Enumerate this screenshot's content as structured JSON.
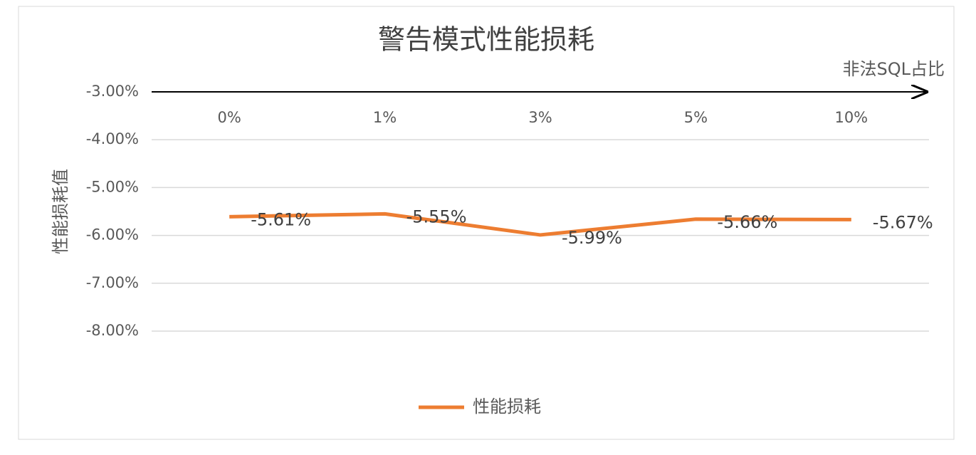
{
  "chart_data": {
    "type": "line",
    "title": "警告模式性能损耗",
    "x_label": "非法SQL占比",
    "y_label": "性能损耗值",
    "categories": [
      "0%",
      "1%",
      "3%",
      "5%",
      "10%"
    ],
    "series": [
      {
        "name": "性能损耗",
        "color": "#ed7d31",
        "values": [
          -5.61,
          -5.55,
          -5.99,
          -5.66,
          -5.67
        ],
        "value_labels": [
          "-5.61%",
          "-5.55%",
          "-5.99%",
          "-5.66%",
          "-5.67%"
        ]
      }
    ],
    "ylim": [
      -8,
      -3
    ],
    "yticks": [
      {
        "value": -3,
        "label": "-3.00%"
      },
      {
        "value": -4,
        "label": "-4.00%"
      },
      {
        "value": -5,
        "label": "-5.00%"
      },
      {
        "value": -6,
        "label": "-6.00%"
      },
      {
        "value": -7,
        "label": "-7.00%"
      },
      {
        "value": -8,
        "label": "-8.00%"
      }
    ],
    "grid": true,
    "legend": "bottom"
  }
}
